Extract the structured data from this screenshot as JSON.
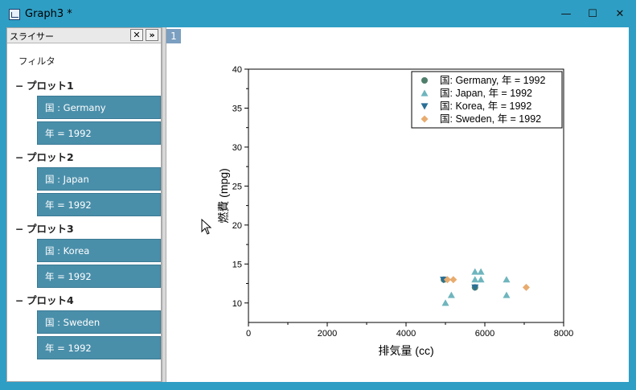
{
  "window": {
    "title": "Graph3 *",
    "controls": {
      "minimize": "—",
      "maximize": "☐",
      "close": "✕"
    }
  },
  "slider": {
    "title": "スライサー",
    "close_label": "✕",
    "expand_label": "»",
    "filter_label": "フィルタ",
    "groups": [
      {
        "label": "プロット1",
        "chips": [
          "国 : Germany",
          "年 = 1992"
        ]
      },
      {
        "label": "プロット2",
        "chips": [
          "国 : Japan",
          "年 = 1992"
        ]
      },
      {
        "label": "プロット3",
        "chips": [
          "国 : Korea",
          "年 = 1992"
        ]
      },
      {
        "label": "プロット4",
        "chips": [
          "国 : Sweden",
          "年 = 1992"
        ]
      }
    ]
  },
  "graph": {
    "layer_tab": "1"
  },
  "chart_data": {
    "type": "scatter",
    "title": "",
    "xlabel": "排気量 (cc)",
    "ylabel": "燃費 (mpg)",
    "xlim": [
      0,
      8000
    ],
    "ylim": [
      7.5,
      40
    ],
    "xticks": [
      0,
      2000,
      4000,
      6000,
      8000
    ],
    "yticks": [
      10,
      15,
      20,
      25,
      30,
      35,
      40
    ],
    "legend_position": "top-right",
    "series": [
      {
        "name": "国: Germany, 年 = 1992",
        "marker": "circle",
        "color": "#4f7f6c",
        "points": [
          [
            4960,
            13
          ],
          [
            5750,
            12
          ]
        ]
      },
      {
        "name": "国: Japan, 年 = 1992",
        "marker": "triangle-up",
        "color": "#6fb5bd",
        "points": [
          [
            5000,
            10
          ],
          [
            5150,
            11
          ],
          [
            5750,
            14
          ],
          [
            5750,
            13
          ],
          [
            5900,
            14
          ],
          [
            5900,
            13
          ],
          [
            6550,
            13
          ],
          [
            6550,
            11
          ]
        ]
      },
      {
        "name": "国: Korea, 年 = 1992",
        "marker": "triangle-down",
        "color": "#2a6f96",
        "points": [
          [
            4950,
            13
          ],
          [
            5750,
            12
          ]
        ]
      },
      {
        "name": "国: Sweden, 年 = 1992",
        "marker": "diamond",
        "color": "#e8ac6f",
        "points": [
          [
            5050,
            13
          ],
          [
            5200,
            13
          ],
          [
            7050,
            12
          ]
        ]
      }
    ]
  }
}
